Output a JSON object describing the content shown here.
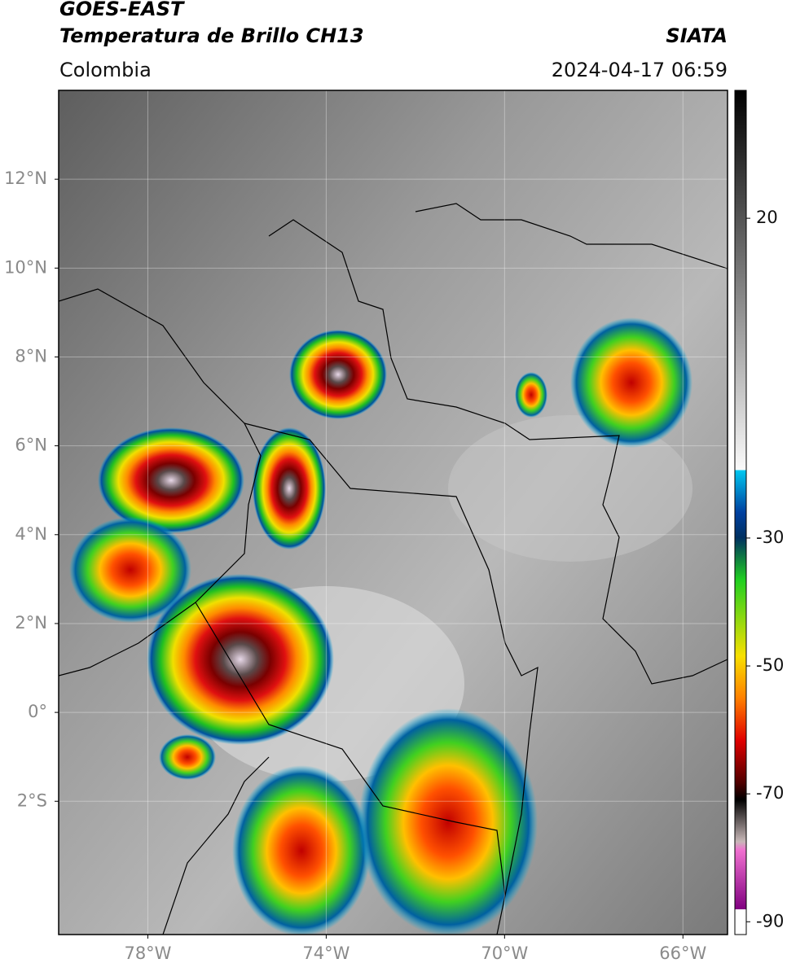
{
  "header": {
    "title": "GOES-EAST",
    "subtitle": "Temperatura de Brillo CH13",
    "source": "SIATA",
    "region": "Colombia",
    "datetime": "2024-04-17 06:59"
  },
  "map": {
    "lonlim": [
      -80,
      -65
    ],
    "latlim": [
      -5,
      14
    ],
    "lonticks": [
      {
        "value": -78,
        "label": "78°W"
      },
      {
        "value": -74,
        "label": "74°W"
      },
      {
        "value": -70,
        "label": "70°W"
      },
      {
        "value": -66,
        "label": "66°W"
      }
    ],
    "latticks": [
      {
        "value": 12,
        "label": "12°N"
      },
      {
        "value": 10,
        "label": "10°N"
      },
      {
        "value": 8,
        "label": "8°N"
      },
      {
        "value": 6,
        "label": "6°N"
      },
      {
        "value": 4,
        "label": "4°N"
      },
      {
        "value": 2,
        "label": "2°N"
      },
      {
        "value": 0,
        "label": "0°"
      },
      {
        "value": -2,
        "label": "2°S"
      }
    ]
  },
  "colorbar": {
    "lim": [
      -92,
      40
    ],
    "ticks": [
      20,
      -30,
      -50,
      -70,
      -90
    ]
  }
}
